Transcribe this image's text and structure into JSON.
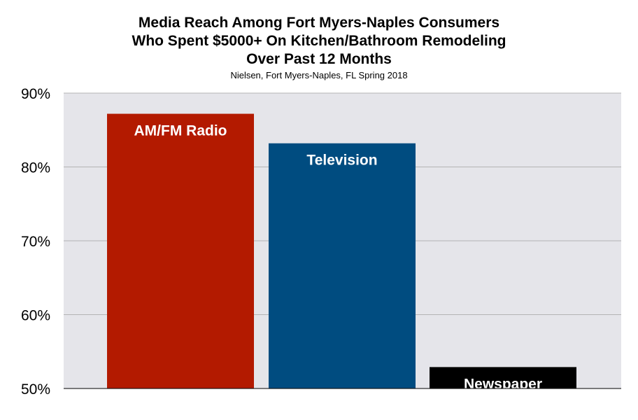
{
  "chart_data": {
    "type": "bar",
    "title_lines": [
      "Media Reach Among Fort Myers-Naples Consumers",
      "Who Spent $5000+ On Kitchen/Bathroom Remodeling",
      "Over Past 12 Months"
    ],
    "subtitle": "Nielsen, Fort Myers-Naples, FL Spring 2018",
    "categories": [
      "AM/FM Radio",
      "Television",
      "Newspaper"
    ],
    "values": [
      87.2,
      83.2,
      52.9
    ],
    "colors": [
      "#b31a00",
      "#004c80",
      "#000000"
    ],
    "ylim": [
      50,
      90
    ],
    "yticks": [
      50,
      60,
      70,
      80,
      90
    ],
    "ytick_labels": [
      "50%",
      "60%",
      "70%",
      "80%",
      "90%"
    ],
    "grid": true,
    "plot_background": "#e5e5ea",
    "gridline_color": "#b4b4b4",
    "label_placement": "inside-top",
    "xlabel": "",
    "ylabel": ""
  }
}
